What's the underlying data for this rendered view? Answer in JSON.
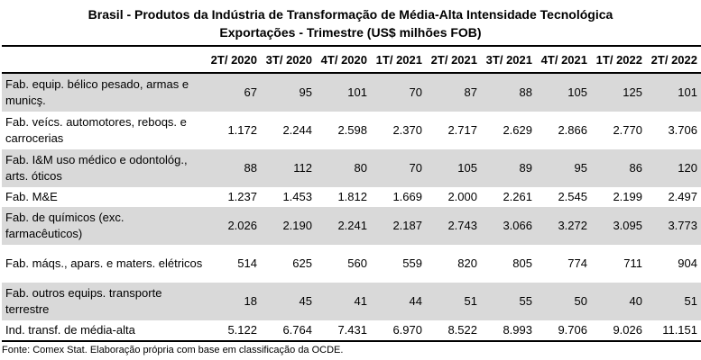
{
  "title_line1": "Brasil - Produtos da Indústria de Transformação de Média-Alta Intensidade Tecnológica",
  "title_line2": "Exportações - Trimestre (US$ milhões FOB)",
  "columns": [
    "",
    "2T/ 2020",
    "3T/ 2020",
    "4T/ 2020",
    "1T/ 2021",
    "2T/ 2021",
    "3T/ 2021",
    "4T/ 2021",
    "1T/ 2022",
    "2T/ 2022"
  ],
  "rows": [
    {
      "label": "Fab. equip. bélico pesado, armas e municş.",
      "values": [
        "67",
        "95",
        "101",
        "70",
        "87",
        "88",
        "105",
        "125",
        "101"
      ]
    },
    {
      "label": "Fab. veícs. automotores, reboqs. e carrocerias",
      "values": [
        "1.172",
        "2.244",
        "2.598",
        "2.370",
        "2.717",
        "2.629",
        "2.866",
        "2.770",
        "3.706"
      ]
    },
    {
      "label": "Fab. I&M uso médico e odontológ., arts. óticos",
      "values": [
        "88",
        "112",
        "80",
        "70",
        "105",
        "89",
        "95",
        "86",
        "120"
      ]
    },
    {
      "label": "Fab. M&E",
      "values": [
        "1.237",
        "1.453",
        "1.812",
        "1.669",
        "2.000",
        "2.261",
        "2.545",
        "2.199",
        "2.497"
      ]
    },
    {
      "label": "Fab. de químicos (exc. farmacêuticos)",
      "values": [
        "2.026",
        "2.190",
        "2.241",
        "2.187",
        "2.743",
        "3.066",
        "3.272",
        "3.095",
        "3.773"
      ]
    },
    {
      "label": "Fab. máqs., apars. e maters. elétricos",
      "values": [
        "514",
        "625",
        "560",
        "559",
        "820",
        "805",
        "774",
        "711",
        "904"
      ]
    },
    {
      "label": "Fab. outros equips. transporte terrestre",
      "values": [
        "18",
        "45",
        "41",
        "44",
        "51",
        "55",
        "50",
        "40",
        "51"
      ]
    },
    {
      "label": "Ind. transf. de média-alta",
      "values": [
        "5.122",
        "6.764",
        "7.431",
        "6.970",
        "8.522",
        "8.993",
        "9.706",
        "9.026",
        "11.151"
      ]
    }
  ],
  "source": "Fonte: Comex Stat. Elaboração própria com base em classificação da OCDE."
}
